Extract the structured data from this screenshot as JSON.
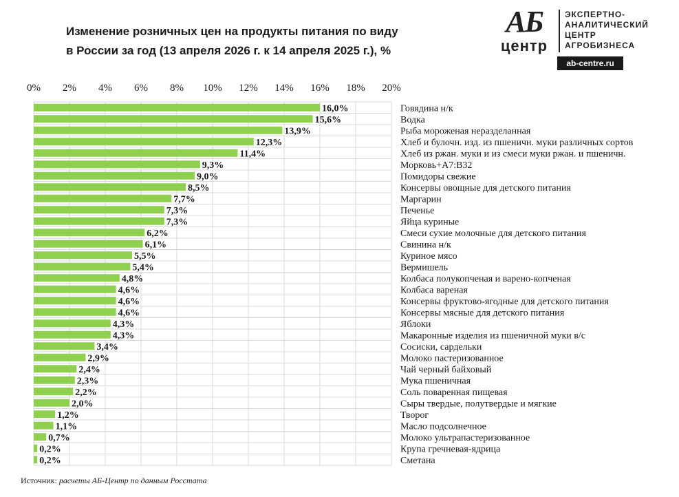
{
  "title_line1": "Изменение розничных цен на продукты питания по виду",
  "title_line2": "в России за год (13 апреля 2026 г. к 14 апреля 2025 г.), %",
  "logo": {
    "mark_top": "АБ",
    "mark_bottom": "центр",
    "line1": "ЭКСПЕРТНО-",
    "line2": "АНАЛИТИЧЕСКИЙ",
    "line3": "ЦЕНТР",
    "line4": "АГРОБИЗНЕСА",
    "url": "ab-centre.ru"
  },
  "source": {
    "prefix": "Источник:",
    "text": "расчеты АБ-Центр по данным Росстата"
  },
  "colors": {
    "bar": "#8fd14f",
    "grid": "#d9d9d9",
    "text": "#1a1a1a"
  },
  "chart_data": {
    "type": "bar",
    "orientation": "horizontal",
    "xlim": [
      0,
      20
    ],
    "ticks": [
      "0%",
      "2%",
      "4%",
      "6%",
      "8%",
      "10%",
      "12%",
      "14%",
      "16%",
      "18%",
      "20%"
    ],
    "axis_position": "top",
    "grid": true,
    "categories": [
      "Говядина н/к",
      "Водка",
      "Рыба мороженая неразделанная",
      "Хлеб и булочн. изд. из пшеничн. муки различных сортов",
      "Хлеб из ржан. муки и из смеси муки ржан. и пшеничн.",
      "Морковь+A7:B32",
      "Помидоры свежие",
      "Консервы овощные для детского питания",
      "Маргарин",
      "Печенье",
      "Яйца куриные",
      "Смеси сухие молочные для детского питания",
      "Свинина н/к",
      "Куриное мясо",
      "Вермишель",
      "Колбаса полукопченая и варено-копченая",
      "Колбаса вареная",
      "Консервы фруктово-ягодные для детского питания",
      "Консервы мясные для детского питания",
      "Яблоки",
      "Макаронные изделия из пшеничной муки в/с",
      "Сосиски, сардельки",
      "Молоко пастеризованное",
      "Чай черный байховый",
      "Мука пшеничная",
      "Соль поваренная пищевая",
      "Сыры твердые, полутвердые и мягкие",
      "Творог",
      "Масло подсолнечное",
      "Молоко ультрапастеризованное",
      "Крупа гречневая-ядрица",
      "Сметана"
    ],
    "values": [
      16.0,
      15.6,
      13.9,
      12.3,
      11.4,
      9.3,
      9.0,
      8.5,
      7.7,
      7.3,
      7.3,
      6.2,
      6.1,
      5.5,
      5.4,
      4.8,
      4.6,
      4.6,
      4.6,
      4.3,
      4.3,
      3.4,
      2.9,
      2.4,
      2.3,
      2.2,
      2.0,
      1.2,
      1.1,
      0.7,
      0.2,
      0.2
    ],
    "labels": [
      "16,0%",
      "15,6%",
      "13,9%",
      "12,3%",
      "11,4%",
      "9,3%",
      "9,0%",
      "8,5%",
      "7,7%",
      "7,3%",
      "7,3%",
      "6,2%",
      "6,1%",
      "5,5%",
      "5,4%",
      "4,8%",
      "4,6%",
      "4,6%",
      "4,6%",
      "4,3%",
      "4,3%",
      "3,4%",
      "2,9%",
      "2,4%",
      "2,3%",
      "2,2%",
      "2,0%",
      "1,2%",
      "1,1%",
      "0,7%",
      "0,2%",
      "0,2%"
    ]
  }
}
